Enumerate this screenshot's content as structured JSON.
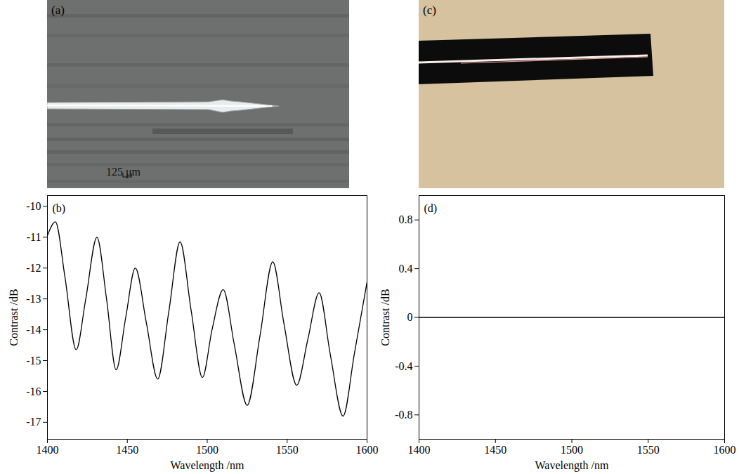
{
  "chart_data": [
    {
      "type": "photo",
      "title": "(a)",
      "annotations": [
        "125 μm"
      ]
    },
    {
      "type": "line",
      "title": "(b)",
      "x": [
        1400,
        1405,
        1411,
        1418,
        1424,
        1431,
        1437,
        1443,
        1449,
        1455,
        1462,
        1469,
        1476,
        1483,
        1490,
        1497,
        1503,
        1510,
        1517,
        1525,
        1533,
        1541,
        1548,
        1556,
        1563,
        1570,
        1577,
        1585,
        1592,
        1600
      ],
      "values": [
        -10.95,
        -10.5,
        -12.3,
        -14.65,
        -13.0,
        -11.0,
        -13.0,
        -15.3,
        -13.6,
        -12.0,
        -13.8,
        -15.6,
        -13.4,
        -11.15,
        -13.4,
        -15.55,
        -14.0,
        -12.7,
        -14.5,
        -16.45,
        -14.2,
        -11.8,
        -13.8,
        -15.8,
        -14.3,
        -12.8,
        -14.8,
        -16.8,
        -14.8,
        -12.45
      ],
      "color": "#000000",
      "xlim": [
        1400,
        1600
      ],
      "xticks": [
        1400,
        1450,
        1500,
        1550,
        1600
      ],
      "ylim": [
        -17.55,
        -9.65
      ],
      "yticks": [
        -17,
        -16,
        -15,
        -14,
        -13,
        -12,
        -11,
        -10
      ],
      "xlabel": "Wavelength /nm",
      "ylabel": "Contrast /dB",
      "grid": false
    },
    {
      "type": "photo",
      "title": "(c)"
    },
    {
      "type": "line",
      "title": "(d)",
      "x": [
        1400,
        1600
      ],
      "values": [
        0,
        0
      ],
      "color": "#000000",
      "xlim": [
        1400,
        1600
      ],
      "xticks": [
        1400,
        1450,
        1500,
        1550,
        1600
      ],
      "ylim": [
        -1,
        1
      ],
      "yticks": [
        -0.8,
        -0.4,
        0,
        0.4,
        0.8
      ],
      "xlabel": "Wavelength /nm",
      "ylabel": "Contrast /dB",
      "grid": false
    }
  ]
}
